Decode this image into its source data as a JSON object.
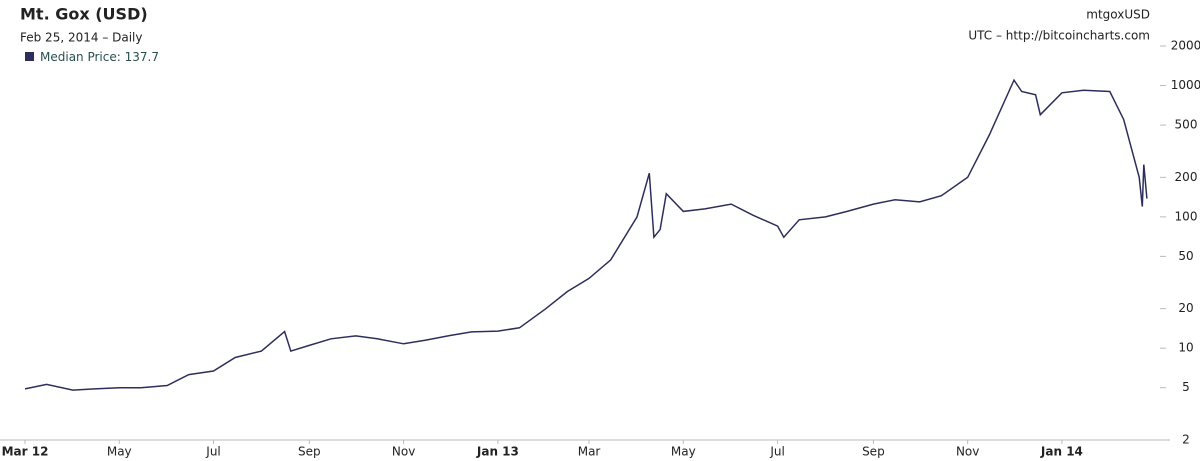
{
  "chart_data": {
    "type": "line",
    "title": "Mt. Gox (USD)",
    "subtitle": "Feb 25, 2014 – Daily",
    "symbol": "mtgoxUSD",
    "source": "UTC – http://bitcoincharts.com",
    "log_scale": true,
    "xlim": [
      "2012-03-01",
      "2014-02-27"
    ],
    "xticks": [
      {
        "value": "2012-03-01",
        "label": "Mar 12"
      },
      {
        "value": "2012-05-01",
        "label": "May"
      },
      {
        "value": "2012-07-01",
        "label": "Jul"
      },
      {
        "value": "2012-09-01",
        "label": "Sep"
      },
      {
        "value": "2012-11-01",
        "label": "Nov"
      },
      {
        "value": "2013-01-01",
        "label": "Jan 13"
      },
      {
        "value": "2013-03-01",
        "label": "Mar"
      },
      {
        "value": "2013-05-01",
        "label": "May"
      },
      {
        "value": "2013-07-01",
        "label": "Jul"
      },
      {
        "value": "2013-09-01",
        "label": "Sep"
      },
      {
        "value": "2013-11-01",
        "label": "Nov"
      },
      {
        "value": "2014-01-01",
        "label": "Jan 14"
      }
    ],
    "ylim": [
      2,
      2000
    ],
    "yticks": [
      2,
      5,
      10,
      20,
      50,
      100,
      200,
      500,
      1000,
      2000
    ],
    "x": [
      "2012-03-01",
      "2012-03-15",
      "2012-04-01",
      "2012-04-15",
      "2012-05-01",
      "2012-05-15",
      "2012-06-01",
      "2012-06-15",
      "2012-07-01",
      "2012-07-15",
      "2012-08-01",
      "2012-08-16",
      "2012-08-20",
      "2012-09-01",
      "2012-09-15",
      "2012-10-01",
      "2012-10-15",
      "2012-11-01",
      "2012-11-15",
      "2012-12-01",
      "2012-12-15",
      "2013-01-01",
      "2013-01-15",
      "2013-02-01",
      "2013-02-15",
      "2013-03-01",
      "2013-03-15",
      "2013-04-01",
      "2013-04-09",
      "2013-04-12",
      "2013-04-16",
      "2013-04-20",
      "2013-05-01",
      "2013-05-15",
      "2013-06-01",
      "2013-06-15",
      "2013-07-01",
      "2013-07-05",
      "2013-07-15",
      "2013-08-01",
      "2013-08-15",
      "2013-09-01",
      "2013-09-15",
      "2013-10-01",
      "2013-10-15",
      "2013-11-01",
      "2013-11-15",
      "2013-12-01",
      "2013-12-06",
      "2013-12-15",
      "2013-12-18",
      "2014-01-01",
      "2014-01-15",
      "2014-02-01",
      "2014-02-10",
      "2014-02-20",
      "2014-02-22",
      "2014-02-23",
      "2014-02-25"
    ],
    "series": [
      {
        "name": "Median Price:",
        "color": "#2e2e5c",
        "values": [
          4.9,
          5.3,
          4.8,
          4.9,
          5.0,
          5.0,
          5.2,
          6.3,
          6.7,
          8.5,
          9.5,
          13.4,
          9.5,
          10.5,
          11.8,
          12.4,
          11.8,
          10.8,
          11.5,
          12.5,
          13.3,
          13.5,
          14.3,
          20,
          27,
          34,
          47,
          100,
          215,
          70,
          80,
          150,
          110,
          115,
          125,
          103,
          85,
          70,
          95,
          100,
          110,
          125,
          135,
          130,
          145,
          200,
          420,
          1100,
          900,
          850,
          600,
          880,
          920,
          900,
          550,
          200,
          120,
          250,
          137.7
        ]
      }
    ]
  }
}
